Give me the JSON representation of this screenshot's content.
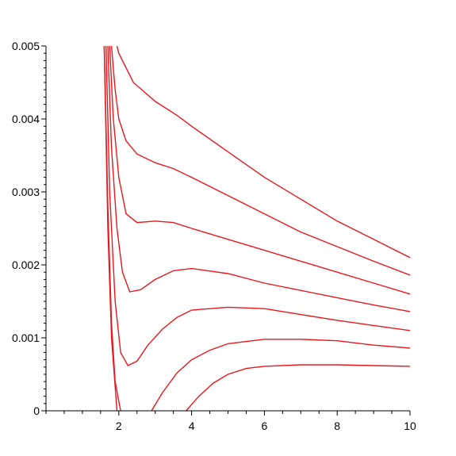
{
  "chart_data": {
    "type": "line",
    "title": "",
    "xlabel": "",
    "ylabel": "",
    "xlim": [
      0,
      10
    ],
    "ylim": [
      0,
      0.005
    ],
    "x_ticks": [
      2,
      4,
      6,
      8,
      10
    ],
    "x_tick_labels": [
      "2",
      "4",
      "6",
      "8",
      "10"
    ],
    "y_ticks": [
      0,
      0.001,
      0.002,
      0.003,
      0.004,
      0.005
    ],
    "y_tick_labels": [
      "0",
      "0.001",
      "0.002",
      "0.003",
      "0.004",
      "0.005"
    ],
    "grid": false,
    "legend": "none",
    "line_color": "#e8181f",
    "series": [
      {
        "x": [
          1.95,
          2.0,
          2.4,
          3.0,
          3.6,
          4.0,
          5.0,
          6.0,
          7.0,
          8.0,
          9.0,
          10.0
        ],
        "y": [
          0.005,
          0.0049,
          0.0045,
          0.00424,
          0.00405,
          0.0039,
          0.00355,
          0.0032,
          0.0029,
          0.0026,
          0.00235,
          0.0021
        ]
      },
      {
        "x": [
          1.8,
          1.9,
          2.0,
          2.2,
          2.5,
          3.0,
          3.5,
          4.0,
          5.0,
          6.0,
          7.0,
          8.0,
          9.0,
          10.0
        ],
        "y": [
          0.005,
          0.0044,
          0.004,
          0.0037,
          0.00352,
          0.0034,
          0.00332,
          0.0032,
          0.00295,
          0.0027,
          0.00245,
          0.00225,
          0.00205,
          0.00186
        ]
      },
      {
        "x": [
          1.75,
          1.85,
          2.0,
          2.2,
          2.5,
          3.0,
          3.5,
          4.0,
          5.0,
          6.0,
          7.0,
          8.0,
          9.0,
          10.0
        ],
        "y": [
          0.005,
          0.004,
          0.0032,
          0.0027,
          0.00258,
          0.0026,
          0.00258,
          0.0025,
          0.00235,
          0.0022,
          0.00205,
          0.0019,
          0.00175,
          0.0016
        ]
      },
      {
        "x": [
          1.7,
          1.8,
          1.95,
          2.1,
          2.3,
          2.6,
          3.0,
          3.5,
          4.0,
          5.0,
          6.0,
          7.0,
          8.0,
          9.0,
          10.0
        ],
        "y": [
          0.005,
          0.0036,
          0.0025,
          0.0019,
          0.00163,
          0.00166,
          0.0018,
          0.00192,
          0.00195,
          0.00188,
          0.00175,
          0.00165,
          0.00155,
          0.00145,
          0.00136
        ]
      },
      {
        "x": [
          1.65,
          1.75,
          1.9,
          2.05,
          2.25,
          2.5,
          2.8,
          3.2,
          3.6,
          4.0,
          5.0,
          6.0,
          7.0,
          8.0,
          9.0,
          10.0
        ],
        "y": [
          0.005,
          0.003,
          0.0015,
          0.0008,
          0.00062,
          0.00068,
          0.0009,
          0.00112,
          0.00128,
          0.00138,
          0.00142,
          0.0014,
          0.00132,
          0.00124,
          0.00117,
          0.0011
        ]
      },
      {
        "x": [
          1.6,
          1.7,
          1.8,
          1.95
        ],
        "y": [
          0.005,
          0.0025,
          0.001,
          0.0
        ]
      },
      {
        "x": [
          1.6,
          1.7,
          1.8,
          1.9,
          2.05
        ],
        "y": [
          0.005,
          0.0028,
          0.0012,
          0.0004,
          0.0
        ]
      },
      {
        "x": [
          2.9,
          3.2,
          3.6,
          4.0,
          4.5,
          5.0,
          6.0,
          7.0,
          8.0,
          9.0,
          10.0
        ],
        "y": [
          0.0,
          0.00025,
          0.00052,
          0.0007,
          0.00083,
          0.00092,
          0.00098,
          0.00098,
          0.00096,
          0.0009,
          0.00086
        ]
      },
      {
        "x": [
          3.85,
          4.2,
          4.6,
          5.0,
          5.5,
          6.0,
          7.0,
          8.0,
          9.0,
          10.0
        ],
        "y": [
          0.0,
          0.0002,
          0.00038,
          0.0005,
          0.00058,
          0.00061,
          0.00063,
          0.00063,
          0.00062,
          0.00061
        ]
      }
    ]
  }
}
